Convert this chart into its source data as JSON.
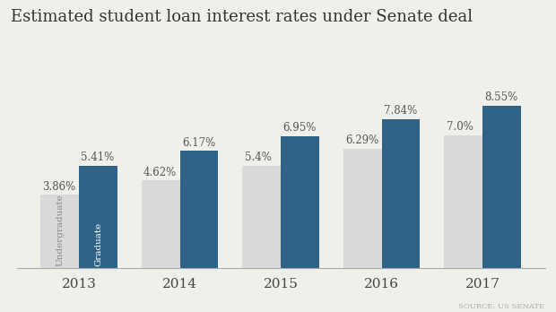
{
  "title": "Estimated student loan interest rates under Senate deal",
  "years": [
    "2013",
    "2014",
    "2015",
    "2016",
    "2017"
  ],
  "undergraduate": [
    3.86,
    4.62,
    5.4,
    6.29,
    7.0
  ],
  "graduate": [
    5.41,
    6.17,
    6.95,
    7.84,
    8.55
  ],
  "undergrad_labels": [
    "3.86%",
    "4.62%",
    "5.4%",
    "6.29%",
    "7.0%"
  ],
  "grad_labels": [
    "5.41%",
    "6.17%",
    "6.95%",
    "7.84%",
    "8.55%"
  ],
  "undergrad_color": "#d9d9d9",
  "grad_color": "#2e6387",
  "background_color": "#f0f0eb",
  "title_fontsize": 13,
  "bar_label_fontsize": 8.5,
  "tick_fontsize": 11,
  "source_text": "SOURCE: US SENATE",
  "legend_undergrad": "Undergraduate",
  "legend_grad": "Graduate",
  "bar_width": 0.38,
  "ylim": [
    0,
    10.5
  ]
}
